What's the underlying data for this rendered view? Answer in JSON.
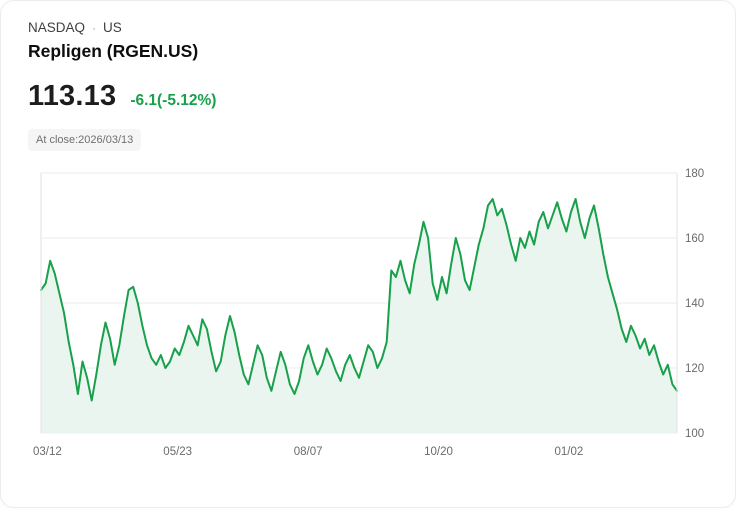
{
  "header": {
    "exchange": "NASDAQ",
    "separator": "·",
    "country": "US",
    "title": "Repligen (RGEN.US)"
  },
  "quote": {
    "price": "113.13",
    "change": "-6.1(-5.12%)",
    "at_close": "At close:2026/03/13"
  },
  "colors": {
    "accent_green": "#18a04b",
    "fill_green": "#e9f5ee",
    "grid_gray": "#ebebeb",
    "label_gray": "#6b6b6b"
  },
  "chart_data": {
    "type": "area",
    "title": "Repligen (RGEN.US) 1-year price",
    "xlabel": "",
    "ylabel": "",
    "x_tick_labels": [
      "03/12",
      "05/23",
      "08/07",
      "10/20",
      "01/02"
    ],
    "y_tick_labels": [
      "180",
      "160",
      "140",
      "120",
      "100"
    ],
    "ylim": [
      100,
      180
    ],
    "grid": true,
    "legend": false,
    "values": [
      144,
      146,
      153,
      149,
      143,
      137,
      128,
      121,
      112,
      122,
      117,
      110,
      118,
      127,
      134,
      129,
      121,
      127,
      136,
      144,
      145,
      140,
      133,
      127,
      123,
      121,
      124,
      120,
      122,
      126,
      124,
      128,
      133,
      130,
      127,
      135,
      132,
      125,
      119,
      122,
      130,
      136,
      131,
      124,
      118,
      115,
      121,
      127,
      124,
      117,
      113,
      119,
      125,
      121,
      115,
      112,
      116,
      123,
      127,
      122,
      118,
      121,
      126,
      123,
      119,
      116,
      121,
      124,
      120,
      117,
      122,
      127,
      125,
      120,
      123,
      128,
      150,
      148,
      153,
      147,
      143,
      152,
      158,
      165,
      160,
      146,
      141,
      148,
      143,
      152,
      160,
      155,
      147,
      144,
      151,
      158,
      163,
      170,
      172,
      167,
      169,
      164,
      158,
      153,
      160,
      157,
      162,
      158,
      165,
      168,
      163,
      167,
      171,
      166,
      162,
      168,
      172,
      165,
      160,
      166,
      170,
      163,
      155,
      148,
      143,
      138,
      132,
      128,
      133,
      130,
      126,
      129,
      124,
      127,
      122,
      118,
      121,
      115,
      113
    ]
  }
}
